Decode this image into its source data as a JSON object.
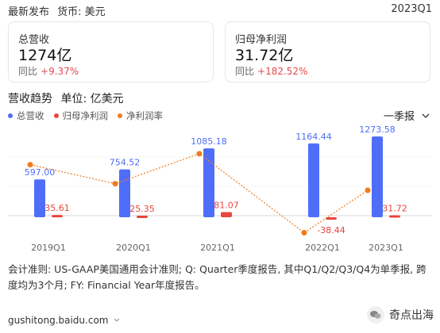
{
  "header": {
    "title": "最新发布",
    "currency": "货币: 美元",
    "period": "2023Q1"
  },
  "cards": {
    "revenue": {
      "label": "总营收",
      "value": "1274亿",
      "yoy_label": "同比",
      "yoy_value": "+9.37%"
    },
    "profit": {
      "label": "归母净利润",
      "value": "31.72亿",
      "yoy_label": "同比",
      "yoy_value": "+182.52%"
    }
  },
  "section": {
    "title": "营收趋势",
    "unit": "单位: 亿美元"
  },
  "period_select": {
    "label": "一季报"
  },
  "colors": {
    "revenue": "#4f6ef7",
    "profit": "#e8453c",
    "margin": "#f07b1d",
    "positive": "#e5484d"
  },
  "chart_data": {
    "type": "bar",
    "categories": [
      "2019Q1",
      "2020Q1",
      "2021Q1",
      "2022Q1",
      "2023Q1"
    ],
    "series": [
      {
        "name": "总营收",
        "type": "bar",
        "values": [
          597.0,
          754.52,
          1085.18,
          1164.44,
          1273.58
        ],
        "labels": [
          "597.00",
          "754.52",
          "1085.18",
          "1164.44",
          "1273.58"
        ]
      },
      {
        "name": "归母净利润",
        "type": "bar",
        "values": [
          35.61,
          25.35,
          81.07,
          -38.44,
          31.72
        ],
        "labels": [
          "35.61",
          "25.35",
          "81.07",
          "-38.44",
          "31.72"
        ]
      },
      {
        "name": "净利润率",
        "type": "line",
        "values": [
          6.0,
          3.4,
          7.5,
          -3.3,
          2.5
        ]
      }
    ],
    "ylim": [
      -100,
      1400
    ],
    "margin_ylim": [
      -4,
      9
    ],
    "legend_position": "top-left"
  },
  "footnote": "会计准则: US-GAAP美国通用会计准则; Q: Quarter季度报告, 其中Q1/Q2/Q3/Q4为单季报, 跨度均为3个月; FY: Financial Year年度报告。",
  "source": {
    "text": "gushitong.baidu.com"
  },
  "watermark": {
    "text": "奇点出海"
  }
}
